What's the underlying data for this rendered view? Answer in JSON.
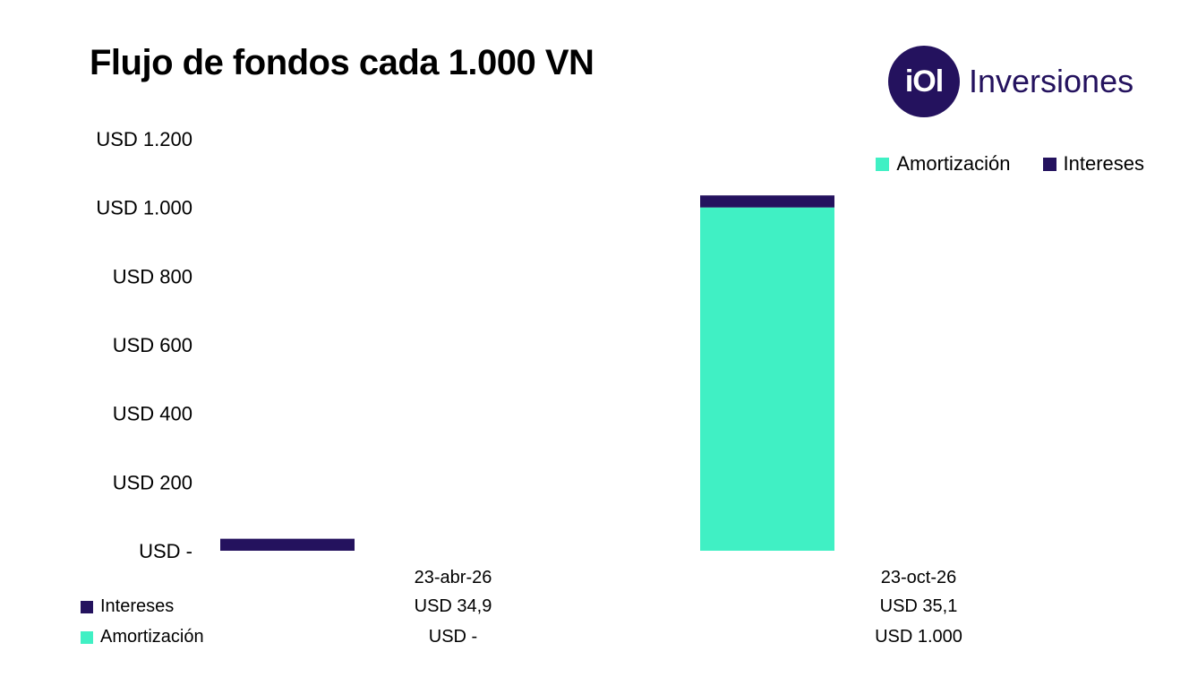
{
  "header": {
    "title": "Flujo de fondos cada 1.000 VN"
  },
  "logo": {
    "mark": "iOl",
    "name": "Inversiones",
    "color": "#24125e"
  },
  "legend": [
    {
      "name": "Amortización",
      "color": "#40f0c4"
    },
    {
      "name": "Intereses",
      "color": "#24125e"
    }
  ],
  "chart_data": {
    "type": "bar",
    "stacked": true,
    "categories": [
      "23-abr-26",
      "23-oct-26"
    ],
    "series": [
      {
        "name": "Amortización",
        "values": [
          0,
          1000
        ],
        "color": "#40f0c4"
      },
      {
        "name": "Intereses",
        "values": [
          34.9,
          35.1
        ],
        "color": "#24125e"
      }
    ],
    "yticks": [
      "USD -",
      "USD 200",
      "USD 400",
      "USD 600",
      "USD 800",
      "USD 1.000",
      "USD 1.200"
    ],
    "ylim": [
      0,
      1200
    ],
    "grid": false,
    "legend_position": "top-right"
  },
  "data_table": {
    "rows": [
      {
        "label": "Intereses",
        "color": "#24125e",
        "values": [
          "USD 34,9",
          "USD 35,1"
        ]
      },
      {
        "label": "Amortización",
        "color": "#40f0c4",
        "values": [
          "USD -",
          "USD 1.000"
        ]
      }
    ]
  }
}
